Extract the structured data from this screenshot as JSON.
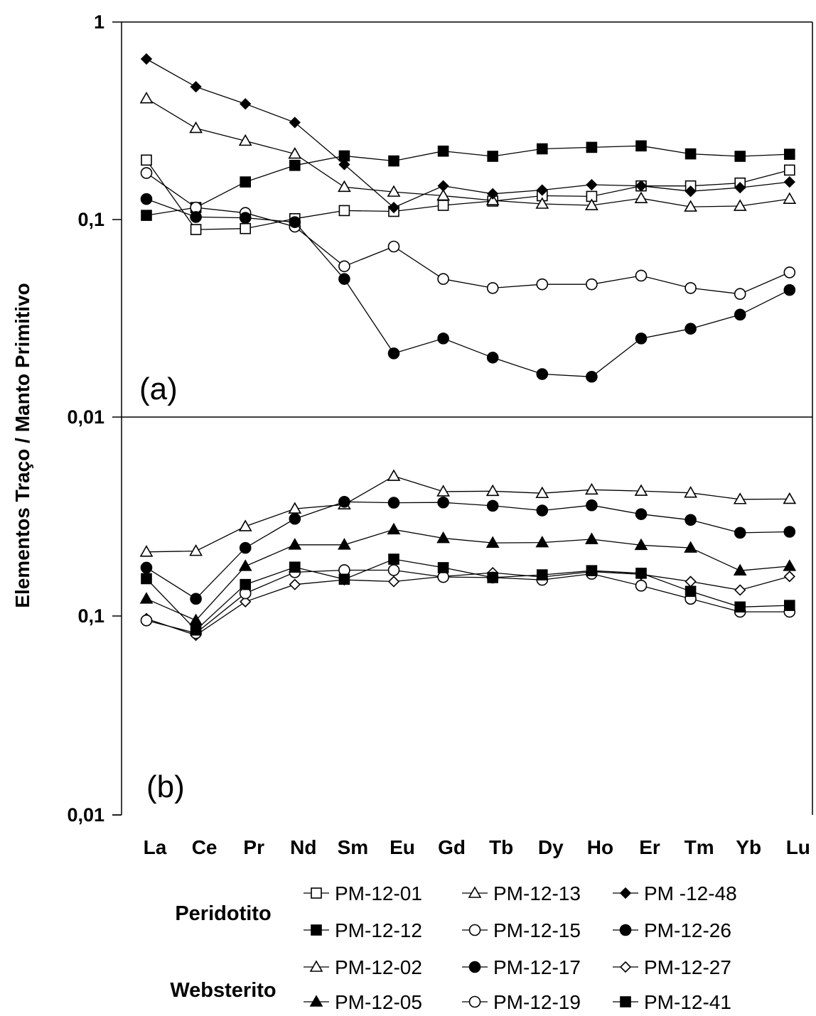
{
  "chart_data": [
    {
      "type": "line",
      "panel": "(a)",
      "ylabel": "Elementos Traço / Manto Primitivo",
      "yscale": "log",
      "ylim": [
        0.01,
        1
      ],
      "yticks": [
        "1",
        "0,1",
        "0,01"
      ],
      "categories": [
        "La",
        "Ce",
        "Pr",
        "Nd",
        "Sm",
        "Eu",
        "Gd",
        "Tb",
        "Dy",
        "Ho",
        "Er",
        "Tm",
        "Yb",
        "Lu"
      ],
      "series": [
        {
          "name": "PM-12-01",
          "marker": "square-open",
          "values": [
            0.2,
            0.089,
            0.09,
            0.101,
            0.111,
            0.11,
            0.118,
            0.124,
            0.132,
            0.131,
            0.148,
            0.148,
            0.153,
            0.178
          ]
        },
        {
          "name": "PM-12-13",
          "marker": "triangle-open",
          "values": [
            0.41,
            0.29,
            0.25,
            0.215,
            0.146,
            0.138,
            0.132,
            0.125,
            0.12,
            0.118,
            0.128,
            0.116,
            0.117,
            0.127
          ]
        },
        {
          "name": "PM -12-48",
          "marker": "diamond-filled",
          "values": [
            0.65,
            0.47,
            0.385,
            0.31,
            0.19,
            0.115,
            0.148,
            0.135,
            0.141,
            0.15,
            0.148,
            0.139,
            0.145,
            0.155
          ]
        },
        {
          "name": "PM-12-12",
          "marker": "square-filled",
          "values": [
            0.105,
            0.115,
            0.155,
            0.188,
            0.21,
            0.198,
            0.222,
            0.209,
            0.228,
            0.232,
            0.236,
            0.215,
            0.209,
            0.214
          ]
        },
        {
          "name": "PM-12-15",
          "marker": "circle-open",
          "values": [
            0.172,
            0.115,
            0.108,
            0.092,
            0.058,
            0.073,
            0.05,
            0.045,
            0.047,
            0.047,
            0.052,
            0.045,
            0.042,
            0.054
          ]
        },
        {
          "name": "PM-12-26",
          "marker": "circle-filled",
          "values": [
            0.127,
            0.103,
            0.102,
            0.097,
            0.05,
            0.021,
            0.025,
            0.02,
            0.0165,
            0.016,
            0.025,
            0.028,
            0.033,
            0.044
          ]
        }
      ]
    },
    {
      "type": "line",
      "panel": "(b)",
      "ylabel": "Elementos Traço / Manto Primitivo",
      "yscale": "log",
      "ylim": [
        0.01,
        1
      ],
      "yticks": [
        "0,1",
        "0,01"
      ],
      "categories": [
        "La",
        "Ce",
        "Pr",
        "Nd",
        "Sm",
        "Eu",
        "Gd",
        "Tb",
        "Dy",
        "Ho",
        "Er",
        "Tm",
        "Yb",
        "Lu"
      ],
      "series": [
        {
          "name": "PM-12-02",
          "marker": "triangle-open",
          "values": [
            0.21,
            0.212,
            0.282,
            0.346,
            0.363,
            0.505,
            0.422,
            0.424,
            0.414,
            0.431,
            0.425,
            0.416,
            0.386,
            0.387
          ]
        },
        {
          "name": "PM-12-17",
          "marker": "circle-filled",
          "values": [
            0.175,
            0.122,
            0.22,
            0.308,
            0.375,
            0.371,
            0.372,
            0.358,
            0.339,
            0.36,
            0.325,
            0.304,
            0.262,
            0.265
          ]
        },
        {
          "name": "PM-12-27",
          "marker": "diamond-open",
          "values": [
            0.097,
            0.08,
            0.118,
            0.144,
            0.152,
            0.149,
            0.158,
            0.165,
            0.157,
            0.167,
            0.162,
            0.149,
            0.135,
            0.158
          ]
        },
        {
          "name": "PM-12-05",
          "marker": "triangle-filled",
          "values": [
            0.122,
            0.095,
            0.178,
            0.228,
            0.228,
            0.272,
            0.246,
            0.233,
            0.234,
            0.243,
            0.227,
            0.22,
            0.169,
            0.178
          ]
        },
        {
          "name": "PM-12-19",
          "marker": "circle-open",
          "values": [
            0.095,
            0.082,
            0.13,
            0.166,
            0.17,
            0.17,
            0.157,
            0.156,
            0.152,
            0.163,
            0.142,
            0.122,
            0.105,
            0.105
          ]
        },
        {
          "name": "PM-12-41",
          "marker": "square-filled",
          "values": [
            0.154,
            0.085,
            0.144,
            0.176,
            0.153,
            0.193,
            0.175,
            0.156,
            0.161,
            0.169,
            0.164,
            0.133,
            0.111,
            0.113
          ]
        }
      ]
    }
  ],
  "legend": {
    "groups": [
      {
        "label": "Peridotito",
        "entries": [
          {
            "label": "PM-12-01",
            "marker": "square-open"
          },
          {
            "label": "PM-12-13",
            "marker": "triangle-open"
          },
          {
            "label": "PM -12-48",
            "marker": "diamond-filled"
          },
          {
            "label": "PM-12-12",
            "marker": "square-filled"
          },
          {
            "label": "PM-12-15",
            "marker": "circle-open"
          },
          {
            "label": "PM-12-26",
            "marker": "circle-filled"
          }
        ]
      },
      {
        "label": "Websterito",
        "entries": [
          {
            "label": "PM-12-02",
            "marker": "triangle-open"
          },
          {
            "label": "PM-12-17",
            "marker": "circle-filled"
          },
          {
            "label": "PM-12-27",
            "marker": "diamond-open"
          },
          {
            "label": "PM-12-05",
            "marker": "triangle-filled"
          },
          {
            "label": "PM-12-19",
            "marker": "circle-open"
          },
          {
            "label": "PM-12-41",
            "marker": "square-filled"
          }
        ]
      }
    ]
  }
}
